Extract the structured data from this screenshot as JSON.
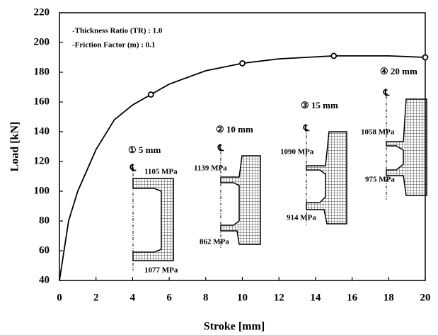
{
  "chart_data": {
    "type": "line",
    "x_label": "Stroke [mm]",
    "y_label": "Load [kN]",
    "x": [
      0,
      0.5,
      1,
      2,
      3,
      4,
      5,
      6,
      8,
      10,
      12,
      15,
      18,
      20
    ],
    "series": [
      {
        "color": "#000000",
        "values": [
          40,
          80,
          100,
          128,
          148,
          158,
          165,
          172,
          181,
          186,
          189,
          191,
          191,
          190
        ]
      }
    ],
    "markers": {
      "x": [
        5,
        10,
        15,
        20
      ],
      "values": [
        165,
        186,
        191,
        190
      ],
      "color": "#000000"
    },
    "xlim": [
      0,
      20
    ],
    "ylim": [
      40,
      220
    ],
    "xticks": [
      0,
      2,
      4,
      6,
      8,
      10,
      12,
      14,
      16,
      18,
      20
    ],
    "yticks": [
      40,
      60,
      80,
      100,
      120,
      140,
      160,
      180,
      200,
      220
    ],
    "notes": [
      "-Thickness Ratio (TR) : 1.0",
      "-Friction Factor (m) : 0.1"
    ],
    "stages": [
      "①  5 mm",
      "②  10 mm",
      "③  15 mm",
      "④  20 mm"
    ],
    "stresses": [
      "1105 MPa",
      "1077 MPa",
      "1139 MPa",
      "862 MPa",
      "1090 MPa",
      "914 MPa",
      "1058 MPa",
      "975 MPa"
    ],
    "centerline_symbol": "℄"
  }
}
